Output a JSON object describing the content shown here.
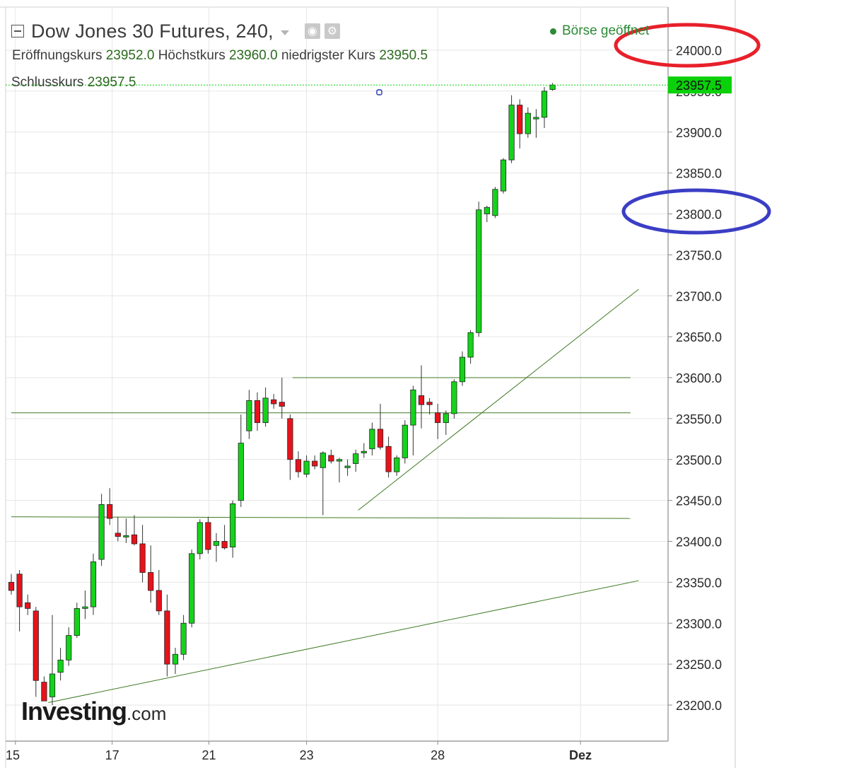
{
  "header": {
    "title": "Dow Jones 30 Futures, 240,",
    "open_label": "Eröffnungskurs",
    "open_value": "23952.0",
    "high_label": "Höchstkurs",
    "high_value": "23960.0",
    "low_label": "niedrigster Kurs",
    "low_value": "23950.5",
    "close_label": "Schlusskurs",
    "close_value": "23957.5",
    "market_status": "Börse geöffnet"
  },
  "watermark": {
    "main": "Investing",
    "sub": ".com"
  },
  "colors": {
    "up": "#15d31b",
    "down": "#e8121b",
    "trendline": "#3f7a23",
    "grid": "#e6e6e6",
    "axis": "#8c8c8c",
    "price_marker": "#0ad10a",
    "circle_top": "#e8202a",
    "circle_bottom": "#3b3ec4"
  },
  "chart_data": {
    "type": "candlestick",
    "y_axis": {
      "ticks": [
        24000,
        23950,
        23900,
        23850,
        23800,
        23750,
        23700,
        23650,
        23600,
        23550,
        23500,
        23450,
        23400,
        23350,
        23300,
        23250,
        23200
      ],
      "tick_labels": [
        "24000.0",
        "23950.0",
        "23900.0",
        "23850.0",
        "23800.0",
        "23750.0",
        "23700.0",
        "23650.0",
        "23600.0",
        "23550.0",
        "23500.0",
        "23450.0",
        "23400.0",
        "23350.0",
        "23300.0",
        "23250.0",
        "23200.0"
      ],
      "ylim": [
        23160,
        24050
      ]
    },
    "x_axis": {
      "labels": [
        {
          "label": "15",
          "index": 0.5
        },
        {
          "label": "17",
          "index": 12.3
        },
        {
          "label": "21",
          "index": 24.1
        },
        {
          "label": "23",
          "index": 36.0
        },
        {
          "label": "28",
          "index": 52.0
        },
        {
          "label": "Dez",
          "index": 69.4
        }
      ],
      "xlim": [
        0,
        80
      ]
    },
    "last_price": {
      "label": "23957.5",
      "value": 23957.5
    },
    "candles": [
      {
        "i": 0,
        "o": 23350,
        "h": 23360,
        "l": 23335,
        "c": 23340
      },
      {
        "i": 1,
        "o": 23360,
        "h": 23365,
        "l": 23290,
        "c": 23320
      },
      {
        "i": 2,
        "o": 23325,
        "h": 23335,
        "l": 23310,
        "c": 23318
      },
      {
        "i": 3,
        "o": 23315,
        "h": 23320,
        "l": 23210,
        "c": 23230
      },
      {
        "i": 4,
        "o": 23228,
        "h": 23235,
        "l": 23205,
        "c": 23205
      },
      {
        "i": 5,
        "o": 23210,
        "h": 23310,
        "l": 23200,
        "c": 23238
      },
      {
        "i": 6,
        "o": 23240,
        "h": 23270,
        "l": 23230,
        "c": 23255
      },
      {
        "i": 7,
        "o": 23255,
        "h": 23295,
        "l": 23248,
        "c": 23285
      },
      {
        "i": 8,
        "o": 23285,
        "h": 23325,
        "l": 23282,
        "c": 23318
      },
      {
        "i": 9,
        "o": 23318,
        "h": 23340,
        "l": 23305,
        "c": 23320
      },
      {
        "i": 10,
        "o": 23320,
        "h": 23385,
        "l": 23310,
        "c": 23375
      },
      {
        "i": 11,
        "o": 23378,
        "h": 23458,
        "l": 23370,
        "c": 23445
      },
      {
        "i": 12,
        "o": 23445,
        "h": 23465,
        "l": 23420,
        "c": 23428
      },
      {
        "i": 13,
        "o": 23410,
        "h": 23430,
        "l": 23400,
        "c": 23406
      },
      {
        "i": 14,
        "o": 23406,
        "h": 23428,
        "l": 23398,
        "c": 23407
      },
      {
        "i": 15,
        "o": 23408,
        "h": 23432,
        "l": 23395,
        "c": 23397
      },
      {
        "i": 16,
        "o": 23397,
        "h": 23420,
        "l": 23350,
        "c": 23362
      },
      {
        "i": 17,
        "o": 23362,
        "h": 23395,
        "l": 23325,
        "c": 23340
      },
      {
        "i": 18,
        "o": 23340,
        "h": 23365,
        "l": 23310,
        "c": 23315
      },
      {
        "i": 19,
        "o": 23315,
        "h": 23335,
        "l": 23235,
        "c": 23250
      },
      {
        "i": 20,
        "o": 23250,
        "h": 23270,
        "l": 23238,
        "c": 23262
      },
      {
        "i": 21,
        "o": 23262,
        "h": 23310,
        "l": 23255,
        "c": 23300
      },
      {
        "i": 22,
        "o": 23300,
        "h": 23390,
        "l": 23295,
        "c": 23385
      },
      {
        "i": 23,
        "o": 23385,
        "h": 23427,
        "l": 23378,
        "c": 23423
      },
      {
        "i": 24,
        "o": 23423,
        "h": 23430,
        "l": 23385,
        "c": 23390
      },
      {
        "i": 25,
        "o": 23395,
        "h": 23410,
        "l": 23375,
        "c": 23400
      },
      {
        "i": 26,
        "o": 23400,
        "h": 23420,
        "l": 23390,
        "c": 23392
      },
      {
        "i": 27,
        "o": 23393,
        "h": 23450,
        "l": 23380,
        "c": 23446
      },
      {
        "i": 28,
        "o": 23450,
        "h": 23555,
        "l": 23442,
        "c": 23520
      },
      {
        "i": 29,
        "o": 23535,
        "h": 23585,
        "l": 23525,
        "c": 23572
      },
      {
        "i": 30,
        "o": 23572,
        "h": 23582,
        "l": 23535,
        "c": 23545
      },
      {
        "i": 31,
        "o": 23545,
        "h": 23588,
        "l": 23540,
        "c": 23575
      },
      {
        "i": 32,
        "o": 23573,
        "h": 23580,
        "l": 23562,
        "c": 23568
      },
      {
        "i": 33,
        "o": 23570,
        "h": 23600,
        "l": 23550,
        "c": 23565
      },
      {
        "i": 34,
        "o": 23550,
        "h": 23555,
        "l": 23475,
        "c": 23500
      },
      {
        "i": 35,
        "o": 23500,
        "h": 23510,
        "l": 23478,
        "c": 23485
      },
      {
        "i": 36,
        "o": 23482,
        "h": 23505,
        "l": 23478,
        "c": 23498
      },
      {
        "i": 37,
        "o": 23498,
        "h": 23505,
        "l": 23488,
        "c": 23492
      },
      {
        "i": 38,
        "o": 23490,
        "h": 23510,
        "l": 23432,
        "c": 23508
      },
      {
        "i": 39,
        "o": 23505,
        "h": 23512,
        "l": 23495,
        "c": 23498
      },
      {
        "i": 40,
        "o": 23498,
        "h": 23502,
        "l": 23472,
        "c": 23500
      },
      {
        "i": 41,
        "o": 23490,
        "h": 23500,
        "l": 23480,
        "c": 23492
      },
      {
        "i": 42,
        "o": 23495,
        "h": 23512,
        "l": 23485,
        "c": 23507
      },
      {
        "i": 43,
        "o": 23508,
        "h": 23520,
        "l": 23502,
        "c": 23510
      },
      {
        "i": 44,
        "o": 23513,
        "h": 23545,
        "l": 23505,
        "c": 23537
      },
      {
        "i": 45,
        "o": 23537,
        "h": 23568,
        "l": 23512,
        "c": 23515
      },
      {
        "i": 46,
        "o": 23516,
        "h": 23528,
        "l": 23478,
        "c": 23485
      },
      {
        "i": 47,
        "o": 23485,
        "h": 23505,
        "l": 23480,
        "c": 23502
      },
      {
        "i": 48,
        "o": 23502,
        "h": 23548,
        "l": 23495,
        "c": 23542
      },
      {
        "i": 49,
        "o": 23542,
        "h": 23590,
        "l": 23505,
        "c": 23585
      },
      {
        "i": 50,
        "o": 23578,
        "h": 23615,
        "l": 23538,
        "c": 23567
      },
      {
        "i": 51,
        "o": 23570,
        "h": 23575,
        "l": 23555,
        "c": 23567
      },
      {
        "i": 52,
        "o": 23557,
        "h": 23568,
        "l": 23525,
        "c": 23545
      },
      {
        "i": 53,
        "o": 23545,
        "h": 23560,
        "l": 23530,
        "c": 23556
      },
      {
        "i": 54,
        "o": 23556,
        "h": 23598,
        "l": 23550,
        "c": 23595
      },
      {
        "i": 55,
        "o": 23595,
        "h": 23632,
        "l": 23590,
        "c": 23625
      },
      {
        "i": 56,
        "o": 23625,
        "h": 23658,
        "l": 23617,
        "c": 23655
      },
      {
        "i": 57,
        "o": 23655,
        "h": 23815,
        "l": 23650,
        "c": 23805
      },
      {
        "i": 58,
        "o": 23800,
        "h": 23810,
        "l": 23790,
        "c": 23808
      },
      {
        "i": 59,
        "o": 23798,
        "h": 23833,
        "l": 23795,
        "c": 23830
      },
      {
        "i": 60,
        "o": 23828,
        "h": 23868,
        "l": 23825,
        "c": 23866
      },
      {
        "i": 61,
        "o": 23866,
        "h": 23945,
        "l": 23862,
        "c": 23933
      },
      {
        "i": 62,
        "o": 23933,
        "h": 23940,
        "l": 23880,
        "c": 23898
      },
      {
        "i": 63,
        "o": 23898,
        "h": 23930,
        "l": 23893,
        "c": 23923
      },
      {
        "i": 64,
        "o": 23916,
        "h": 23928,
        "l": 23893,
        "c": 23918
      },
      {
        "i": 65,
        "o": 23918,
        "h": 23955,
        "l": 23905,
        "c": 23950
      },
      {
        "i": 66,
        "o": 23952,
        "h": 23960,
        "l": 23950.5,
        "c": 23957.5
      }
    ]
  }
}
